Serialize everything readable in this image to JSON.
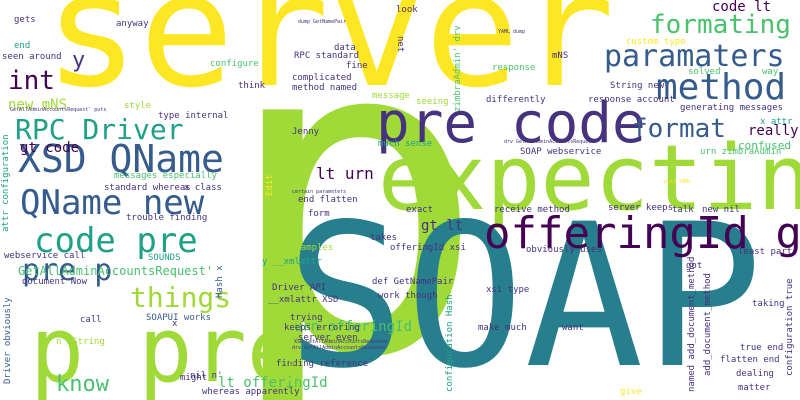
{
  "palette": {
    "yellow": "#fde725",
    "lime": "#a0da39",
    "green": "#4ac16d",
    "teal": "#1fa187",
    "cyan": "#277f8e",
    "blue": "#365c8d",
    "indigo": "#46327e",
    "purple": "#440154"
  },
  "words": [
    {
      "text": "p"
    },
    {
      "text": "server"
    },
    {
      "text": "SOAP"
    },
    {
      "text": "expecting"
    },
    {
      "text": "p pre"
    },
    {
      "text": "pre code"
    },
    {
      "text": "offeringId gt"
    },
    {
      "text": "method"
    },
    {
      "text": "XSD QName"
    },
    {
      "text": "QName new"
    },
    {
      "text": "code pre"
    },
    {
      "text": "paramaters"
    },
    {
      "text": "formating"
    },
    {
      "text": "format"
    },
    {
      "text": "RPC Driver"
    },
    {
      "text": "pre p"
    },
    {
      "text": "things"
    },
    {
      "text": "know"
    },
    {
      "text": "int"
    },
    {
      "text": "y"
    },
    {
      "text": "gt code"
    },
    {
      "text": "lt urn"
    },
    {
      "text": "gt lt"
    },
    {
      "text": "code lt"
    },
    {
      "text": "new mNS"
    },
    {
      "text": "really"
    },
    {
      "text": "confused"
    },
    {
      "text": "urn offeringId"
    },
    {
      "text": "lt offeringId"
    },
    {
      "text": "GetAllAdminAccountsRequest'"
    },
    {
      "text": "RPC standard"
    },
    {
      "text": "complicated"
    },
    {
      "text": "method named"
    },
    {
      "text": "data"
    },
    {
      "text": "net"
    },
    {
      "text": "look"
    },
    {
      "text": "gets"
    },
    {
      "text": "anyway"
    },
    {
      "text": "end"
    },
    {
      "text": "seen around"
    },
    {
      "text": "configure"
    },
    {
      "text": "think"
    },
    {
      "text": "style"
    },
    {
      "text": "type internal"
    },
    {
      "text": "Jenny"
    },
    {
      "text": "much sense"
    },
    {
      "text": "messages especially"
    },
    {
      "text": "standard whereas"
    },
    {
      "text": "x class"
    },
    {
      "text": "trouble finding"
    },
    {
      "text": "webservice call"
    },
    {
      "text": "SOUNDS"
    },
    {
      "text": "document Now"
    },
    {
      "text": "call"
    },
    {
      "text": "SOAPUI works"
    },
    {
      "text": "nil n'"
    },
    {
      "text": "n' String"
    },
    {
      "text": "might"
    },
    {
      "text": "whereas apparently"
    },
    {
      "text": "Driver obviously"
    },
    {
      "text": "attr configuration"
    },
    {
      "text": "Hash x"
    },
    {
      "text": "map"
    },
    {
      "text": "end flatten"
    },
    {
      "text": "form"
    },
    {
      "text": "examples"
    },
    {
      "text": "Driver API"
    },
    {
      "text": "__xmlattr XSD"
    },
    {
      "text": "y __xmlattr"
    },
    {
      "text": "trying"
    },
    {
      "text": "keeps erroring"
    },
    {
      "text": "server even"
    },
    {
      "text": "finding reference"
    },
    {
      "text": "def GetNamePair"
    },
    {
      "text": "work though"
    },
    {
      "text": "make much"
    },
    {
      "text": "takes"
    },
    {
      "text": "offeringId xsi"
    },
    {
      "text": "obviously uses"
    },
    {
      "text": "xsi type"
    },
    {
      "text": "exact"
    },
    {
      "text": "receive method"
    },
    {
      "text": "server keeps"
    },
    {
      "text": "talk"
    },
    {
      "text": "new nil"
    },
    {
      "text": "SOAP webservice"
    },
    {
      "text": "urn zimbraAdmin'"
    },
    {
      "text": "x attr"
    },
    {
      "text": "response account"
    },
    {
      "text": "generating messages"
    },
    {
      "text": "String new"
    },
    {
      "text": "solved"
    },
    {
      "text": "way"
    },
    {
      "text": "response"
    },
    {
      "text": "mNS"
    },
    {
      "text": "custom type"
    },
    {
      "text": "message"
    },
    {
      "text": "seeing"
    },
    {
      "text": "differently"
    },
    {
      "text": "zimbraAdmin' drv"
    },
    {
      "text": "least part"
    },
    {
      "text": "got"
    },
    {
      "text": "want"
    },
    {
      "text": "taking"
    },
    {
      "text": "add_document_method"
    },
    {
      "text": "named add_document_method"
    },
    {
      "text": "configuration Hash"
    },
    {
      "text": "true end"
    },
    {
      "text": "flatten end"
    },
    {
      "text": "dealing"
    },
    {
      "text": "matter"
    },
    {
      "text": "configuration true"
    },
    {
      "text": "give"
    },
    {
      "text": "figure"
    },
    {
      "text": "Edit"
    },
    {
      "text": "x"
    },
    {
      "text": "fine"
    },
    {
      "text": "dump GetNamePair"
    },
    {
      "text": "YAML dump"
    },
    {
      "text": "GetAllAdminAccountsRequest' puts"
    },
    {
      "text": "drv GetAllAdminAccountsRequest"
    },
    {
      "text": "certain parameters"
    },
    {
      "text": "puts YAML"
    },
    {
      "text": "XSD GetAllAdminAccountsResponse'"
    },
    {
      "text": "drv GetAllAdminAccountsResponse'"
    }
  ]
}
